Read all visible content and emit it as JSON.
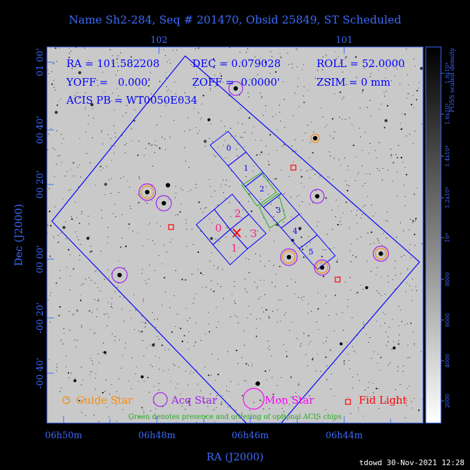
{
  "title": "Name Sh2-284, Seq # 201470, Obsid 25849, ST Scheduled",
  "top_ticks": [
    "102",
    "101"
  ],
  "left_ticks": [
    "01 00'",
    "00 40'",
    "00 20'",
    "00 00'",
    "-00 20'",
    "-00 40'"
  ],
  "bottom_ticks": [
    "06h50m",
    "06h48m",
    "06h46m",
    "06h44m"
  ],
  "xlabel": "RA (J2000)",
  "ylabel": "Dec (J2000)",
  "info": {
    "ra": "RA = 101.582208",
    "dec": "DEC = 0.079028",
    "roll": "ROLL = 52.0000",
    "yoff": "YOFF =   0.000'",
    "zoff": "ZOFF =  0.0000'",
    "zsim": "ZSIM = 0 mm",
    "acis": "ACIS PB = WT0050E034"
  },
  "colorbar": {
    "title": "POSS scaled density",
    "ticks": [
      "2000",
      "4000",
      "6000",
      "8000",
      "10⁴",
      "1.2x10⁴",
      "1.4x10⁴",
      "1.6x10⁴",
      "1.8x10⁴"
    ]
  },
  "chips_s": [
    "0",
    "1",
    "2",
    "3",
    "4",
    "5"
  ],
  "chips_i": [
    "0",
    "1",
    "2",
    "3"
  ],
  "legend": {
    "guide": "Guide Star",
    "acq": "Acq Star",
    "mon": "Mon Star",
    "fid": "Fid Light",
    "note": "Green denotes presence and ordering of optional ACIS chips"
  },
  "footer": "tdowd 30-Nov-2021 12:28",
  "colors": {
    "axis": "#3b6bff",
    "guide": "#ff8c00",
    "acq": "#a020f0",
    "mon": "#ff00ff",
    "fid": "#ff0000",
    "green": "#22aa22",
    "ccd": "#0000ff"
  }
}
